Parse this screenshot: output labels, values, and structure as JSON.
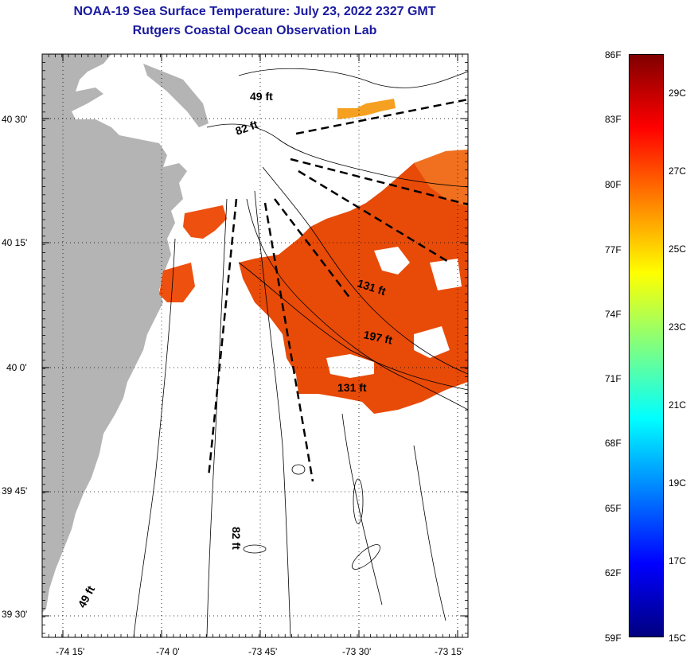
{
  "header": {
    "title": "NOAA-19 Sea Surface Temperature:  July 23, 2022 2327 GMT",
    "subtitle": "Rutgers Coastal Ocean Observation Lab"
  },
  "map": {
    "lat_ticks": [
      "40 30'",
      "40 15'",
      "40 0'",
      "39 45'",
      "39 30'"
    ],
    "lon_ticks": [
      "-74 15'",
      "-74 0'",
      "-73 45'",
      "-73 30'",
      "-73 15'"
    ],
    "depth_labels": [
      "49 ft",
      "82 ft",
      "131 ft",
      "197 ft",
      "131 ft",
      "82 ft",
      "49 ft"
    ],
    "colors": {
      "land": "#b4b4b4",
      "water": "#ffffff",
      "sst_warm": "#ee5010",
      "sst_hot": "#e84a08",
      "sst_mid": "#f5a020"
    }
  },
  "colorbar": {
    "f_labels": [
      "86F",
      "83F",
      "80F",
      "77F",
      "74F",
      "71F",
      "68F",
      "65F",
      "62F",
      "59F"
    ],
    "c_labels": [
      "29C",
      "27C",
      "25C",
      "23C",
      "21C",
      "19C",
      "17C",
      "15C"
    ],
    "colors": [
      "#800000",
      "#ff0000",
      "#ff8000",
      "#ffff00",
      "#80ff80",
      "#00ffff",
      "#0080ff",
      "#0000ff",
      "#000080"
    ]
  }
}
